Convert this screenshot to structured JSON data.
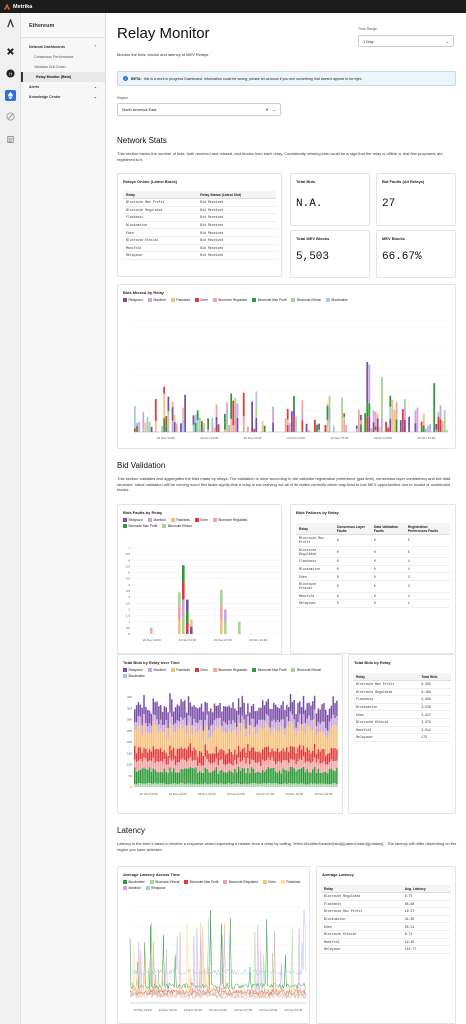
{
  "app": {
    "name": "Metrika"
  },
  "rail": {
    "icons": [
      "hamburger-icon",
      "x-logo-icon",
      "h-logo-icon",
      "ethereum-icon",
      "circle-icon",
      "document-icon"
    ]
  },
  "sidebar": {
    "chain": "Ethereum",
    "groups": [
      {
        "label": "Network Dashboards",
        "items": [
          "Consensus Performance",
          "Validator Drill-Down",
          "Relay Monitor (Beta)"
        ]
      },
      {
        "label": "Alerts",
        "items": []
      },
      {
        "label": "Knowledge Center",
        "items": []
      }
    ]
  },
  "page": {
    "title": "Relay Monitor",
    "subtitle": "Monitor the bids, blocks and latency of MEV Relays.",
    "time_range_label": "Time Range",
    "time_range_value": "1 Day",
    "beta_bold": "BETA:",
    "beta_text": "this is a work in progress Dashboard. Information could be wrong, please let us know if you see something that doesn't appear to be right.",
    "region_label": "Region",
    "region_value": "North America East"
  },
  "network": {
    "title": "Network Stats",
    "desc": "This section tracks the number of bids, both received and missed, and blocks from each relay. Consistently missing bids could be a sign that the relay is offline or that few proposers are registered to it.",
    "relays_online_title": "Relays Online (Latest Block)",
    "relays_cols": [
      "Relay",
      "Relay Status (Latest Slot)"
    ],
    "relays_rows": [
      [
        "Bloxroute Max Profit",
        "Bid Received"
      ],
      [
        "Bloxroute Regulated",
        "Bid Received"
      ],
      [
        "Flashbots",
        "Bid Received"
      ],
      [
        "Blocknative",
        "Bid Received"
      ],
      [
        "Eden",
        "Bid Received"
      ],
      [
        "Bloxroute Ethical",
        "Bid Received"
      ],
      [
        "Manifold",
        "Bid Received"
      ],
      [
        "Relayooor",
        "Bid Received"
      ]
    ],
    "stats": [
      {
        "title": "Total Bids",
        "value": "N.A."
      },
      {
        "title": "Bid Faults (All Relays)",
        "value": "27"
      },
      {
        "title": "Total MEV Blocks",
        "value": "5,503"
      },
      {
        "title": "MEV Blocks",
        "value": "66.67%"
      }
    ]
  },
  "missed": {
    "title": "Bids Missed by Relay",
    "legend": [
      "Relayooor",
      "Manifold",
      "Flashbots",
      "Eden",
      "Bloxroute Regulated",
      "Bloxroute Max Profit",
      "Bloxroute Ethical",
      "Blocknative"
    ],
    "colors": [
      "#7b4fa8",
      "#c9a7dd",
      "#f6c17d",
      "#e03a3a",
      "#f2a3a3",
      "#2e9a3a",
      "#a6d68f",
      "#a9c8e8"
    ],
    "xticks": [
      "22 Nov 19:00",
      "22 Nov 22:00",
      "23 Nov 01:00",
      "23 Nov 04:00",
      "23 Nov 07:00",
      "23 Nov 10:00",
      "23 Nov 13:00"
    ]
  },
  "bid_validation": {
    "title": "Bid Validation",
    "desc": "This section validates and aggregates the bids made by relays. The validation is done according to the validator registration preference (gas limit), consensus layer consistency and bid data structure. Value validation will be coming soon! Bid faults signify that a relay is not carrying out all of its duties correctly which may lead to lost MEV opportunities due to invalid or unselected blocks.",
    "faults_title": "Bids Faults by Relay",
    "faults_legend": [
      "Relayooor",
      "Manifold",
      "Flashbots",
      "Eden",
      "Bloxroute Regulated",
      "Bloxroute Max Profit",
      "Bloxroute Ethical"
    ],
    "faults_yticks": [
      "7",
      "6.5",
      "6",
      "5.5",
      "5",
      "4.5",
      "4",
      "3.5",
      "3",
      "2.5",
      "2",
      "1.5",
      "1",
      "0.5",
      "0"
    ],
    "faults_xticks": [
      "22 Nov 19:00",
      "23 Nov 01:00",
      "23 Nov 07:00",
      "23 Nov 13:00"
    ],
    "failures_title": "Bids Failures by Relay",
    "failures_cols": [
      "Relay",
      "Consensus Layer Faults",
      "Data Validation Faults",
      "Registration Preferences Faults"
    ],
    "failures_rows": [
      [
        "Bloxroute Max Profit",
        "0",
        "0",
        "5"
      ],
      [
        "Bloxroute Regulated",
        "0",
        "0",
        "5"
      ],
      [
        "Flashbots",
        "0",
        "0",
        "4"
      ],
      [
        "Blocknative",
        "0",
        "0",
        "4"
      ],
      [
        "Eden",
        "0",
        "0",
        "3"
      ],
      [
        "Bloxroute Ethical",
        "0",
        "0",
        "3"
      ],
      [
        "Manifold",
        "0",
        "0",
        "2"
      ],
      [
        "Relayooor",
        "0",
        "0",
        "1"
      ]
    ]
  },
  "total_bids": {
    "title": "Total Bids by Relay over Time",
    "legend": [
      "Relayooor",
      "Manifold",
      "Flashbots",
      "Eden",
      "Bloxroute Regulated",
      "Bloxroute Max Profit",
      "Bloxroute Ethical",
      "Blocknative"
    ],
    "yticks": [
      "400",
      "350",
      "300",
      "250",
      "200",
      "150",
      "100",
      "50",
      "0"
    ],
    "xticks": [
      "22 Nov 19:00",
      "22 Nov 22:00",
      "23 Nov 01:00",
      "23 Nov 04:00",
      "23 Nov 07:00",
      "23 Nov 10:00",
      "23 Nov 13:00"
    ],
    "table_title": "Total Bids by Relay",
    "table_cols": [
      "Relay",
      "Total Bids"
    ],
    "table_rows": [
      [
        "Bloxroute Max Profit",
        "6,365"
      ],
      [
        "Bloxroute Regulated",
        "6,186"
      ],
      [
        "Flashbots",
        "5,988"
      ],
      [
        "Blocknative",
        "3,530"
      ],
      [
        "Eden",
        "2,937"
      ],
      [
        "Bloxroute Ethical",
        "2,376"
      ],
      [
        "Manifold",
        "2,012"
      ],
      [
        "Relayooor",
        "173"
      ]
    ]
  },
  "latency": {
    "title": "Latency",
    "desc": "Latency is the time it takes to receive a response when requesting a header from a relay by calling `/eth/v1/builder/header/{slot}/{parent hash}/{pubkey}`. The latency will differ depending on the region you have selected.",
    "chart_title": "Average Latency Across Time",
    "legend": [
      "Blocknative",
      "Bloxroute Ethical",
      "Bloxroute Max Profit",
      "Bloxroute Regulated",
      "Eden",
      "Flashbots",
      "Manifold",
      "Relayooor"
    ],
    "colors": [
      "#2e9a3a",
      "#a6d68f",
      "#e03a3a",
      "#f2a3a3",
      "#f6c17d",
      "#ffe08a",
      "#c9a7dd",
      "#a9c8e8"
    ],
    "xticks": [
      "22 Nov 19:00",
      "22 Nov 22:00",
      "23 Nov 01:00",
      "23 Nov 04:00",
      "23 Nov 07:00",
      "23 Nov 10:00",
      "23 Nov 13:00"
    ],
    "table_title": "Average Latency",
    "table_cols": [
      "Relay",
      "Avg. Latency"
    ],
    "table_rows": [
      [
        "Bloxroute Regulated",
        "6.75"
      ],
      [
        "Flashbots",
        "68.68"
      ],
      [
        "Bloxroute Max Profit",
        "19.57"
      ],
      [
        "Blocknative",
        "34.90"
      ],
      [
        "Eden",
        "28.51"
      ],
      [
        "Bloxroute Ethical",
        "6.71"
      ],
      [
        "Manifold",
        "19.49"
      ],
      [
        "Relayooor",
        "145.77"
      ]
    ]
  }
}
